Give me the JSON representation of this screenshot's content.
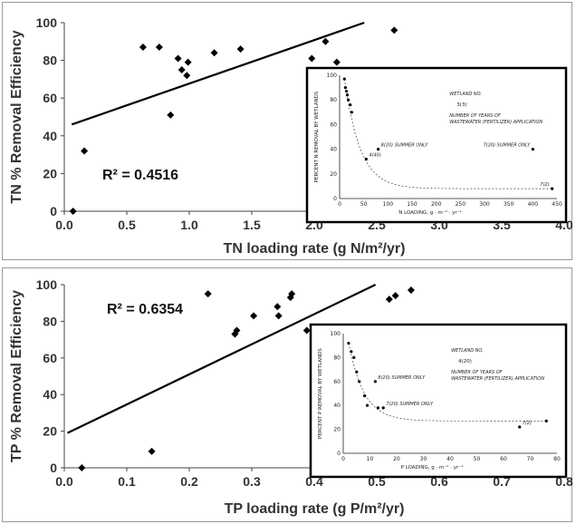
{
  "chart_data": [
    {
      "type": "scatter",
      "xlabel": "TN loading rate (g N/m²/yr)",
      "ylabel": "TN % Removal Efficiency",
      "xlim": [
        0,
        4.0
      ],
      "ylim": [
        0,
        100
      ],
      "xticks": [
        "0.0",
        "0.5",
        "1.0",
        "1.5",
        "2.0",
        "2.5",
        "3.0",
        "3.5",
        "4.0"
      ],
      "yticks": [
        "0",
        "20",
        "40",
        "60",
        "80",
        "100"
      ],
      "r_squared_label": "R² = 0.4516",
      "points": [
        {
          "x": 0.07,
          "y": 0
        },
        {
          "x": 0.16,
          "y": 32
        },
        {
          "x": 0.63,
          "y": 87
        },
        {
          "x": 0.76,
          "y": 87
        },
        {
          "x": 0.85,
          "y": 51
        },
        {
          "x": 0.91,
          "y": 81
        },
        {
          "x": 0.94,
          "y": 75
        },
        {
          "x": 0.98,
          "y": 72
        },
        {
          "x": 0.99,
          "y": 79
        },
        {
          "x": 1.2,
          "y": 84
        },
        {
          "x": 1.41,
          "y": 86
        },
        {
          "x": 1.98,
          "y": 81
        },
        {
          "x": 2.09,
          "y": 90
        },
        {
          "x": 2.18,
          "y": 79
        },
        {
          "x": 2.64,
          "y": 96
        }
      ],
      "trendline": [
        {
          "x": 0.06,
          "y": 46
        },
        {
          "x": 2.4,
          "y": 100
        }
      ],
      "marker": "diamond",
      "inset": {
        "ylabel": "PERCENT N REMOVAL BY WETLANDS",
        "xlabel": "N LOADING, g · m⁻² · yr⁻¹",
        "xlim": [
          0,
          450
        ],
        "ylim": [
          0,
          100
        ],
        "xticks": [
          "0",
          "50",
          "100",
          "150",
          "200",
          "250",
          "300",
          "350",
          "400",
          "450"
        ],
        "yticks": [
          "0",
          "20",
          "40",
          "60",
          "80",
          "100"
        ],
        "legend_wetland": "WETLAND NO.",
        "legend_example": "3(3)",
        "legend_years": "NUMBER OF YEARS OF WASTEWATER (FERTILIZER) APPLICATION",
        "point_labels": [
          "8(20) SUMMER ONLY",
          "4(40)",
          "7(20) SUMMER ONLY",
          "7(2)"
        ],
        "points": [
          {
            "x": 10,
            "y": 97
          },
          {
            "x": 12,
            "y": 90
          },
          {
            "x": 14,
            "y": 87
          },
          {
            "x": 16,
            "y": 84
          },
          {
            "x": 18,
            "y": 80
          },
          {
            "x": 22,
            "y": 76
          },
          {
            "x": 25,
            "y": 70
          },
          {
            "x": 80,
            "y": 40
          },
          {
            "x": 55,
            "y": 32
          },
          {
            "x": 400,
            "y": 40
          },
          {
            "x": 440,
            "y": 8
          }
        ]
      }
    },
    {
      "type": "scatter",
      "xlabel": "TP loading rate (g P/m²/yr)",
      "ylabel": "TP % Removal Efficiency",
      "xlim": [
        0,
        0.8
      ],
      "ylim": [
        0,
        100
      ],
      "xticks": [
        "0.0",
        "0.1",
        "0.2",
        "0.3",
        "0.4",
        "0.5",
        "0.6",
        "0.7",
        "0.8"
      ],
      "yticks": [
        "0",
        "20",
        "40",
        "60",
        "80",
        "100"
      ],
      "r_squared_label": "R² = 0.6354",
      "points": [
        {
          "x": 0.028,
          "y": 0
        },
        {
          "x": 0.14,
          "y": 9
        },
        {
          "x": 0.23,
          "y": 95
        },
        {
          "x": 0.273,
          "y": 73
        },
        {
          "x": 0.276,
          "y": 75
        },
        {
          "x": 0.303,
          "y": 83
        },
        {
          "x": 0.341,
          "y": 88
        },
        {
          "x": 0.343,
          "y": 83
        },
        {
          "x": 0.362,
          "y": 93
        },
        {
          "x": 0.364,
          "y": 95
        },
        {
          "x": 0.388,
          "y": 75
        },
        {
          "x": 0.52,
          "y": 92
        },
        {
          "x": 0.53,
          "y": 94
        },
        {
          "x": 0.555,
          "y": 97
        }
      ],
      "trendline": [
        {
          "x": 0.005,
          "y": 19
        },
        {
          "x": 0.498,
          "y": 100
        }
      ],
      "marker": "diamond",
      "inset": {
        "ylabel": "PERCENT P REMOVAL BY WETLANDS",
        "xlabel": "P LOADING, g · m⁻² · yr⁻¹",
        "xlim": [
          0,
          80
        ],
        "ylim": [
          0,
          100
        ],
        "xticks": [
          "0",
          "10",
          "20",
          "30",
          "40",
          "50",
          "60",
          "70",
          "80"
        ],
        "yticks": [
          "0",
          "20",
          "40",
          "60",
          "80",
          "100"
        ],
        "legend_wetland": "WETLAND NO.",
        "legend_example": "4(20)",
        "legend_years": "NUMBER OF YEARS OF WASTEWATER (FERTILIZER) APPLICATION",
        "point_labels": [
          "8(20) SUMMER ONLY",
          "7(20) SUMMER ONLY",
          "7(2)"
        ],
        "points": [
          {
            "x": 2,
            "y": 92
          },
          {
            "x": 3,
            "y": 85
          },
          {
            "x": 4,
            "y": 80
          },
          {
            "x": 5,
            "y": 68
          },
          {
            "x": 6,
            "y": 60
          },
          {
            "x": 8,
            "y": 48
          },
          {
            "x": 9,
            "y": 40
          },
          {
            "x": 12,
            "y": 60
          },
          {
            "x": 13,
            "y": 38
          },
          {
            "x": 15,
            "y": 38
          },
          {
            "x": 66,
            "y": 22
          },
          {
            "x": 76,
            "y": 27
          }
        ]
      }
    }
  ]
}
